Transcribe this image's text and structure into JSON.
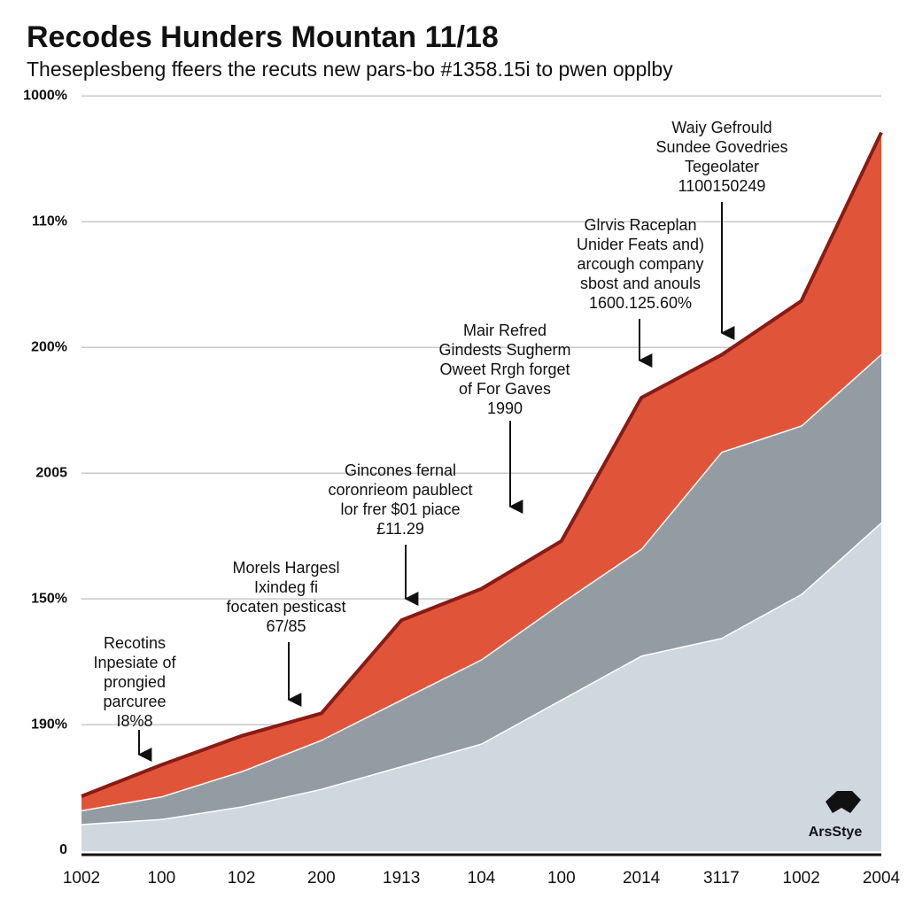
{
  "chart_data": {
    "type": "stacked_area",
    "title": "Recodes Hunders Mountan 11/18",
    "subtitle": "Theseplesbeng ffeers the recuts new pars-bo #1358.15i to pwen opplby",
    "watermark": "ArsStye",
    "categories": [
      "1002",
      "100",
      "102",
      "200",
      "1913",
      "104",
      "100",
      "2014",
      "3117",
      "1002",
      "2004"
    ],
    "series": [
      {
        "name": null,
        "color": "#cfd8df",
        "values": [
          0.21,
          0.25,
          0.35,
          0.49,
          0.67,
          0.85,
          1.2,
          1.55,
          1.69,
          2.04,
          2.61
        ]
      },
      {
        "name": null,
        "color": "#939ba3",
        "values": [
          0.11,
          0.18,
          0.28,
          0.39,
          0.53,
          0.67,
          0.77,
          0.85,
          1.48,
          1.34,
          1.34
        ]
      },
      {
        "name": null,
        "color": "#e0553a",
        "values": [
          0.11,
          0.25,
          0.28,
          0.21,
          0.63,
          0.56,
          0.49,
          1.2,
          0.77,
          0.99,
          1.76
        ]
      }
    ],
    "ylim": [
      0,
      6.2
    ],
    "yticks": [
      0,
      {
        "value": 1,
        "label": "190%"
      },
      {
        "value": 2,
        "label": "150%"
      },
      {
        "value": 3,
        "label": "2005"
      },
      {
        "value": 4,
        "label": "200%"
      },
      {
        "value": 5,
        "label": "110%"
      },
      {
        "value": 6,
        "label": "1000%"
      }
    ],
    "grid": true,
    "annotations": [
      {
        "lines": [
          "Recotins",
          "Inpesiate of",
          "prongied",
          "parcuree",
          "I8%8"
        ]
      },
      {
        "lines": [
          "Morels Hargesl",
          "Ixindeg fi",
          "focaten pesticast",
          "67/85"
        ]
      },
      {
        "lines": [
          "Gincones fernal",
          "coronrieom paublect",
          "lor frer $01 piace",
          "£11.29"
        ]
      },
      {
        "lines": [
          "Mair Refred",
          "Gindests Sugherm",
          "Oweet Rrgh forget",
          "of For Gaves",
          "1990"
        ]
      },
      {
        "lines": [
          "Glrvis Raceplan",
          "Unider Feats and)",
          "arcough company",
          "sbost and anouls",
          "1600.125.60%"
        ]
      },
      {
        "lines": [
          "Waiy Gefrould",
          "Sundee Govedries",
          "Tegeolater",
          "1100150249"
        ]
      }
    ]
  }
}
